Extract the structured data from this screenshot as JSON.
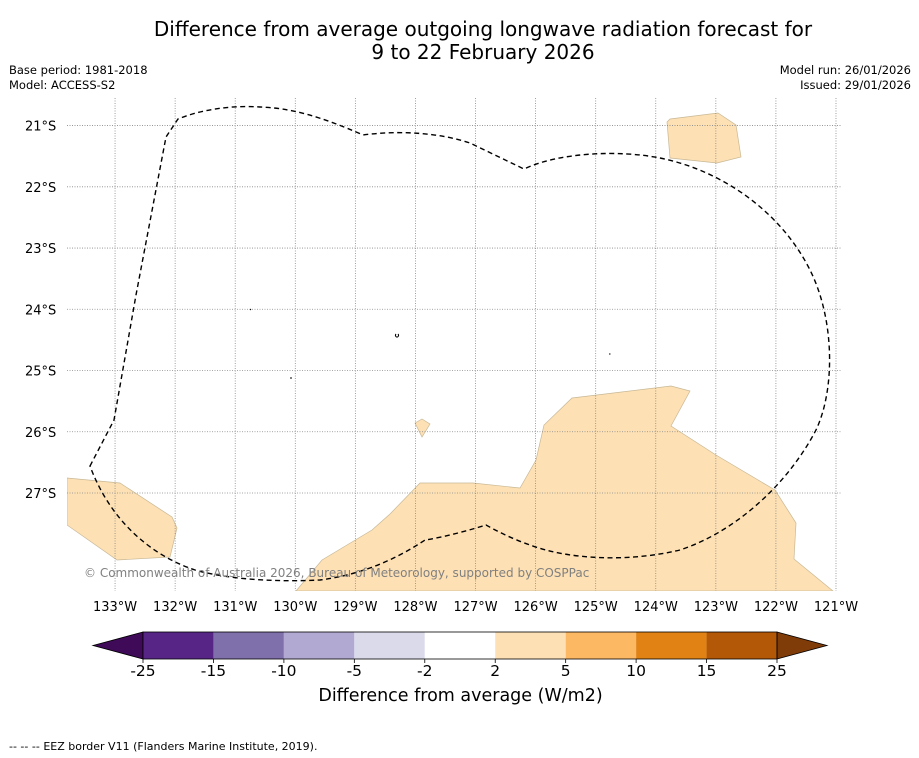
{
  "header": {
    "title_line1": "Difference from average outgoing longwave radiation forecast for",
    "title_line2": "9 to 22 February 2026",
    "base_period": "Base period: 1981-2018",
    "model": "Model: ACCESS-S2",
    "model_run": "Model run: 26/01/2026",
    "issued": "Issued: 29/01/2026"
  },
  "map": {
    "attribution": "© Commonwealth of Australia 2026, Bureau of Meteorology, supported by COSPPac",
    "lat_labels": [
      "21°S",
      "22°S",
      "23°S",
      "24°S",
      "25°S",
      "26°S",
      "27°S"
    ],
    "lon_labels": [
      "133°W",
      "132°W",
      "131°W",
      "130°W",
      "129°W",
      "128°W",
      "127°W",
      "126°W",
      "125°W",
      "124°W",
      "123°W",
      "122°W",
      "121°W"
    ],
    "lat_extent": [
      -28.6,
      -20.55
    ],
    "lon_extent": [
      -133.8,
      -120.9
    ],
    "anomaly_colour": "#fde0b4",
    "anomaly_category": "2 to 5"
  },
  "colorbar": {
    "ticks": [
      "-25",
      "-15",
      "-10",
      "-5",
      "-2",
      "2",
      "5",
      "10",
      "15",
      "25"
    ],
    "colors": [
      "#3f0a57",
      "#572586",
      "#7f70ab",
      "#b2a9d2",
      "#dadaeb",
      "#ffffff",
      "#fde0b4",
      "#fdb863",
      "#e08214",
      "#b35806",
      "#7f3b08"
    ],
    "label": "Difference from average (W/m2)"
  },
  "footer": {
    "legend_symbol": "--  --  --",
    "legend_text": "EEZ border V11 (Flanders Marine Institute, 2019)."
  }
}
